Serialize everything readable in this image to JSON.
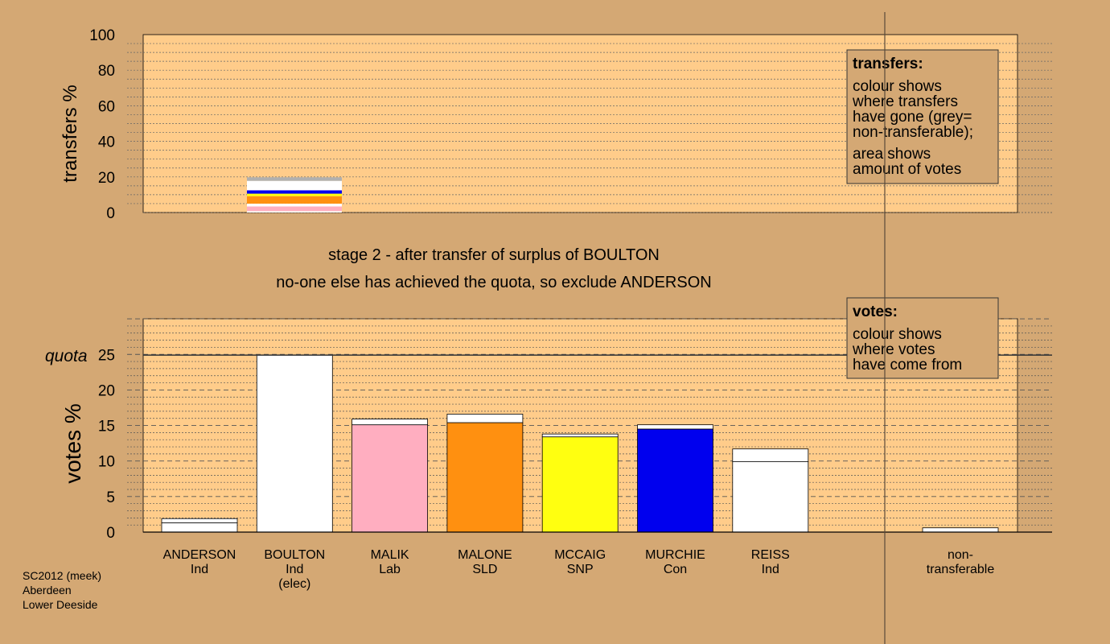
{
  "chart_data": {
    "type": "bar",
    "footer": [
      "SC2012 (meek)",
      "Aberdeen",
      "Lower Deeside"
    ],
    "stage_text": "stage 2 - after transfer of surplus of BOULTON",
    "action_text": "no-one else has achieved the quota, so exclude ANDERSON",
    "colors": {
      "background": "#d4a874",
      "plot_background": "#ffcc8a",
      "grey": "#b0b0b0",
      "Ind": "#ffffff",
      "Lab": "#ffaec0",
      "SLD": "#ff9010",
      "SNP": "#ffff10",
      "Con": "#0000ee"
    },
    "transfers_panel": {
      "ylabel": "transfers %",
      "ylim": [
        0,
        100
      ],
      "yticks": [
        0,
        20,
        40,
        60,
        80,
        100
      ],
      "legend": {
        "title": "transfers:",
        "lines1": [
          "colour shows",
          "where transfers",
          "have gone (grey=",
          "non-transferable);"
        ],
        "lines2": [
          "area shows",
          "amount of votes"
        ]
      },
      "bar_from": "BOULTON",
      "segments": [
        {
          "to": "ANDERSON",
          "party": "Ind",
          "value": 0.8
        },
        {
          "to": "MALIK",
          "party": "Lab",
          "value": 2.6
        },
        {
          "to": "REISS",
          "party": "Ind",
          "value": 1.6
        },
        {
          "to": "MALONE",
          "party": "SLD",
          "value": 4.2
        },
        {
          "to": "MCCAIG",
          "party": "SNP",
          "value": 1.4
        },
        {
          "to": "MURCHIE",
          "party": "Con",
          "value": 1.9
        },
        {
          "to": "REISS (cont.)",
          "party": "Ind",
          "value": 5.3
        },
        {
          "to": "non-transferable",
          "party": "grey",
          "value": 2.0
        }
      ]
    },
    "votes_panel": {
      "ylabel": "votes %",
      "quota_label": "quota",
      "quota": 24.9,
      "ylim": [
        0,
        30
      ],
      "yticks": [
        0,
        5,
        10,
        15,
        20,
        25
      ],
      "legend": {
        "title": "votes:",
        "lines": [
          "colour shows",
          "where votes",
          "have come from"
        ]
      },
      "candidates": [
        {
          "name": "ANDERSON",
          "party": "Ind",
          "extra": "",
          "first": 1.3,
          "transfer": 0.6
        },
        {
          "name": "BOULTON",
          "party": "Ind",
          "extra": "(elec)",
          "first": 24.9,
          "transfer": 0
        },
        {
          "name": "MALIK",
          "party": "Lab",
          "extra": "",
          "first": 15.1,
          "transfer": 0.8
        },
        {
          "name": "MALONE",
          "party": "SLD",
          "extra": "",
          "first": 15.4,
          "transfer": 1.2
        },
        {
          "name": "MCCAIG",
          "party": "SNP",
          "extra": "",
          "first": 13.4,
          "transfer": 0.4
        },
        {
          "name": "MURCHIE",
          "party": "Con",
          "extra": "",
          "first": 14.5,
          "transfer": 0.6
        },
        {
          "name": "REISS",
          "party": "Ind",
          "extra": "",
          "first": 9.9,
          "transfer": 1.8
        }
      ],
      "nontransferable": {
        "label1": "non-",
        "label2": "transferable",
        "value": 0.6,
        "party": "Ind"
      }
    }
  }
}
